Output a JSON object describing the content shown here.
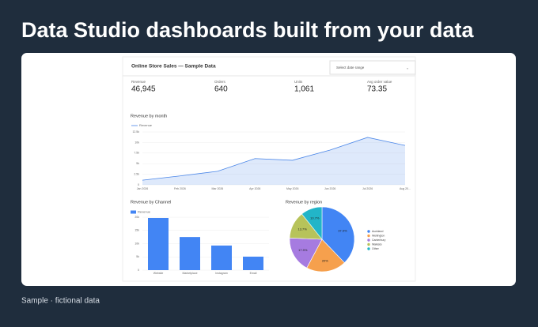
{
  "header": {
    "title": "Data Studio dashboards built from your data"
  },
  "footer": {
    "text": "Sample · fictional data"
  },
  "dashboard": {
    "title": "Online Store Sales — Sample Data",
    "date_select": "Select date range"
  },
  "kpis": [
    {
      "label": "Revenue",
      "value": "46,945"
    },
    {
      "label": "Orders",
      "value": "640"
    },
    {
      "label": "Units",
      "value": "1,061"
    },
    {
      "label": "Avg order value",
      "value": "73.35"
    }
  ],
  "chart_data": [
    {
      "type": "line",
      "title": "Revenue by month",
      "series": [
        {
          "name": "Revenue",
          "color": "#4a86e8",
          "values": [
            1100,
            2100,
            3200,
            6200,
            5800,
            8200,
            11200,
            9300
          ]
        }
      ],
      "categories": [
        "Jan 2026",
        "Feb 2026",
        "Mar 2026",
        "Apr 2026",
        "May 2026",
        "Jun 2026",
        "Jul 2026",
        "Aug 20..."
      ],
      "ylim": [
        0,
        12500
      ],
      "yticks": [
        0,
        {
          "value": 2500,
          "label": "2.5k"
        },
        {
          "value": 5000,
          "label": "5k"
        },
        {
          "value": 7500,
          "label": "7.5k"
        },
        {
          "value": 10000,
          "label": "10k"
        },
        {
          "value": 12500,
          "label": "12.5k"
        }
      ],
      "grid": true
    },
    {
      "type": "bar",
      "title": "Revenue by Channel",
      "series": [
        {
          "name": "Revenue",
          "color": "#4285f4",
          "values": [
            19700,
            12500,
            9300,
            5100
          ]
        }
      ],
      "categories": [
        "Website",
        "Marketplace",
        "Instagram",
        "Email"
      ],
      "ylim": [
        0,
        20000
      ],
      "yticks": [
        0,
        {
          "value": 5000,
          "label": "5k"
        },
        {
          "value": 10000,
          "label": "10k"
        },
        {
          "value": 15000,
          "label": "15k"
        },
        {
          "value": 20000,
          "label": "20k"
        }
      ],
      "grid": true
    },
    {
      "type": "pie",
      "title": "Revenue by region",
      "categories": [
        "Auckland",
        "Wellington",
        "Canterbury",
        "Waikato",
        "Other"
      ],
      "values": [
        37.9,
        20,
        17.9,
        13.7,
        10.7
      ],
      "value_labels": [
        "37.9%",
        "20%",
        "17.9%",
        "13.7%",
        "10.7%"
      ],
      "colors": [
        "#4285f4",
        "#f6a04d",
        "#a67be0",
        "#b7c35a",
        "#22b5c8"
      ]
    }
  ]
}
